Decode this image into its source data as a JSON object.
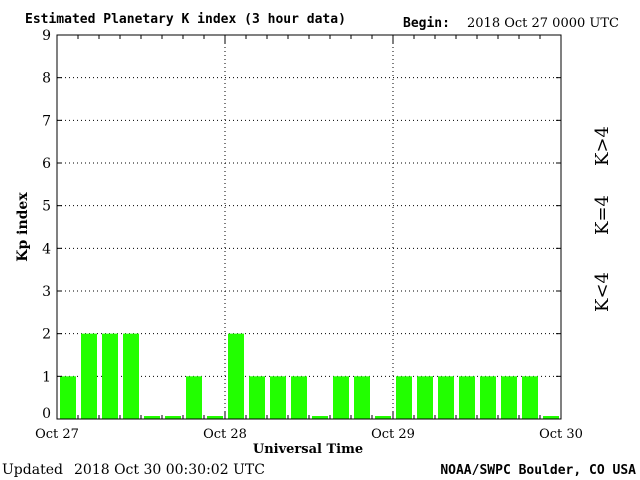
{
  "header": {
    "title": "Estimated Planetary K index (3 hour data)",
    "begin_label": "Begin:",
    "begin_value": "2018 Oct 27 0000 UTC"
  },
  "footer": {
    "updated_label": "Updated",
    "updated_value": "2018 Oct 30 00:30:02 UTC",
    "source": "NOAA/SWPC Boulder, CO USA"
  },
  "legend": {
    "k_gt4": "K>4",
    "k_eq4": "K=4",
    "k_lt4": "K<4"
  },
  "colors": {
    "k_gt4": "#ff2d00",
    "k_eq4": "#ffd700",
    "k_lt4": "#22ff00",
    "bar": "#22ff00"
  },
  "chart_data": {
    "type": "bar",
    "title": "Estimated Planetary K index (3 hour data)",
    "xlabel": "Universal Time",
    "ylabel": "Kp index",
    "ylim": [
      0,
      9
    ],
    "yticks": [
      0,
      1,
      2,
      3,
      4,
      5,
      6,
      7,
      8,
      9
    ],
    "xtick_labels": [
      "Oct 27",
      "Oct 28",
      "Oct 29",
      "Oct 30"
    ],
    "grid": true,
    "series": [
      {
        "values": [
          1,
          2,
          2,
          2,
          0,
          0,
          1,
          0,
          2,
          1,
          1,
          1,
          0,
          1,
          1,
          0,
          1,
          1,
          1,
          1,
          1,
          1,
          1,
          0
        ]
      }
    ]
  }
}
